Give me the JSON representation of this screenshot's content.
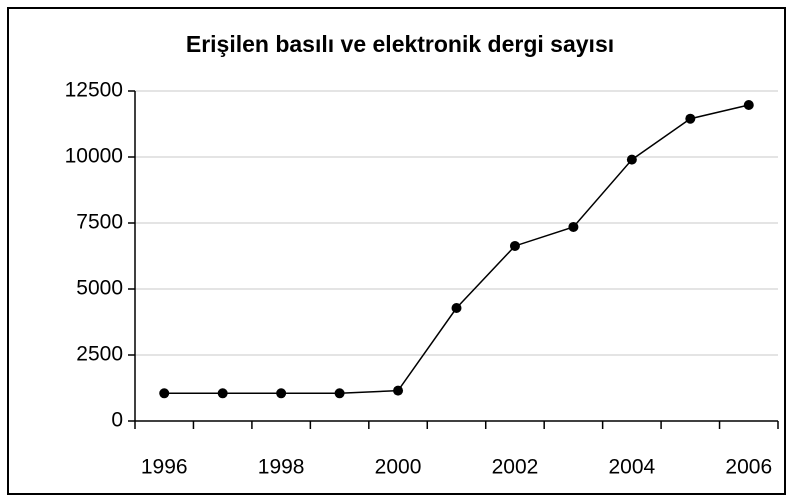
{
  "chart_data": {
    "type": "line",
    "title": "Erişilen basılı ve elektronik dergi sayısı",
    "categories": [
      "1996",
      null,
      "1998",
      null,
      "2000",
      null,
      "2002",
      null,
      "2004",
      null,
      "2006"
    ],
    "series": [
      {
        "name": null,
        "color": "#000000",
        "values": [
          1050,
          1050,
          1050,
          1050,
          1150,
          4280,
          6630,
          7350,
          9900,
          11450,
          11970
        ]
      }
    ],
    "ylim": [
      0,
      12500
    ],
    "yticks": [
      0,
      2500,
      5000,
      7500,
      10000,
      12500
    ],
    "grid": true
  }
}
